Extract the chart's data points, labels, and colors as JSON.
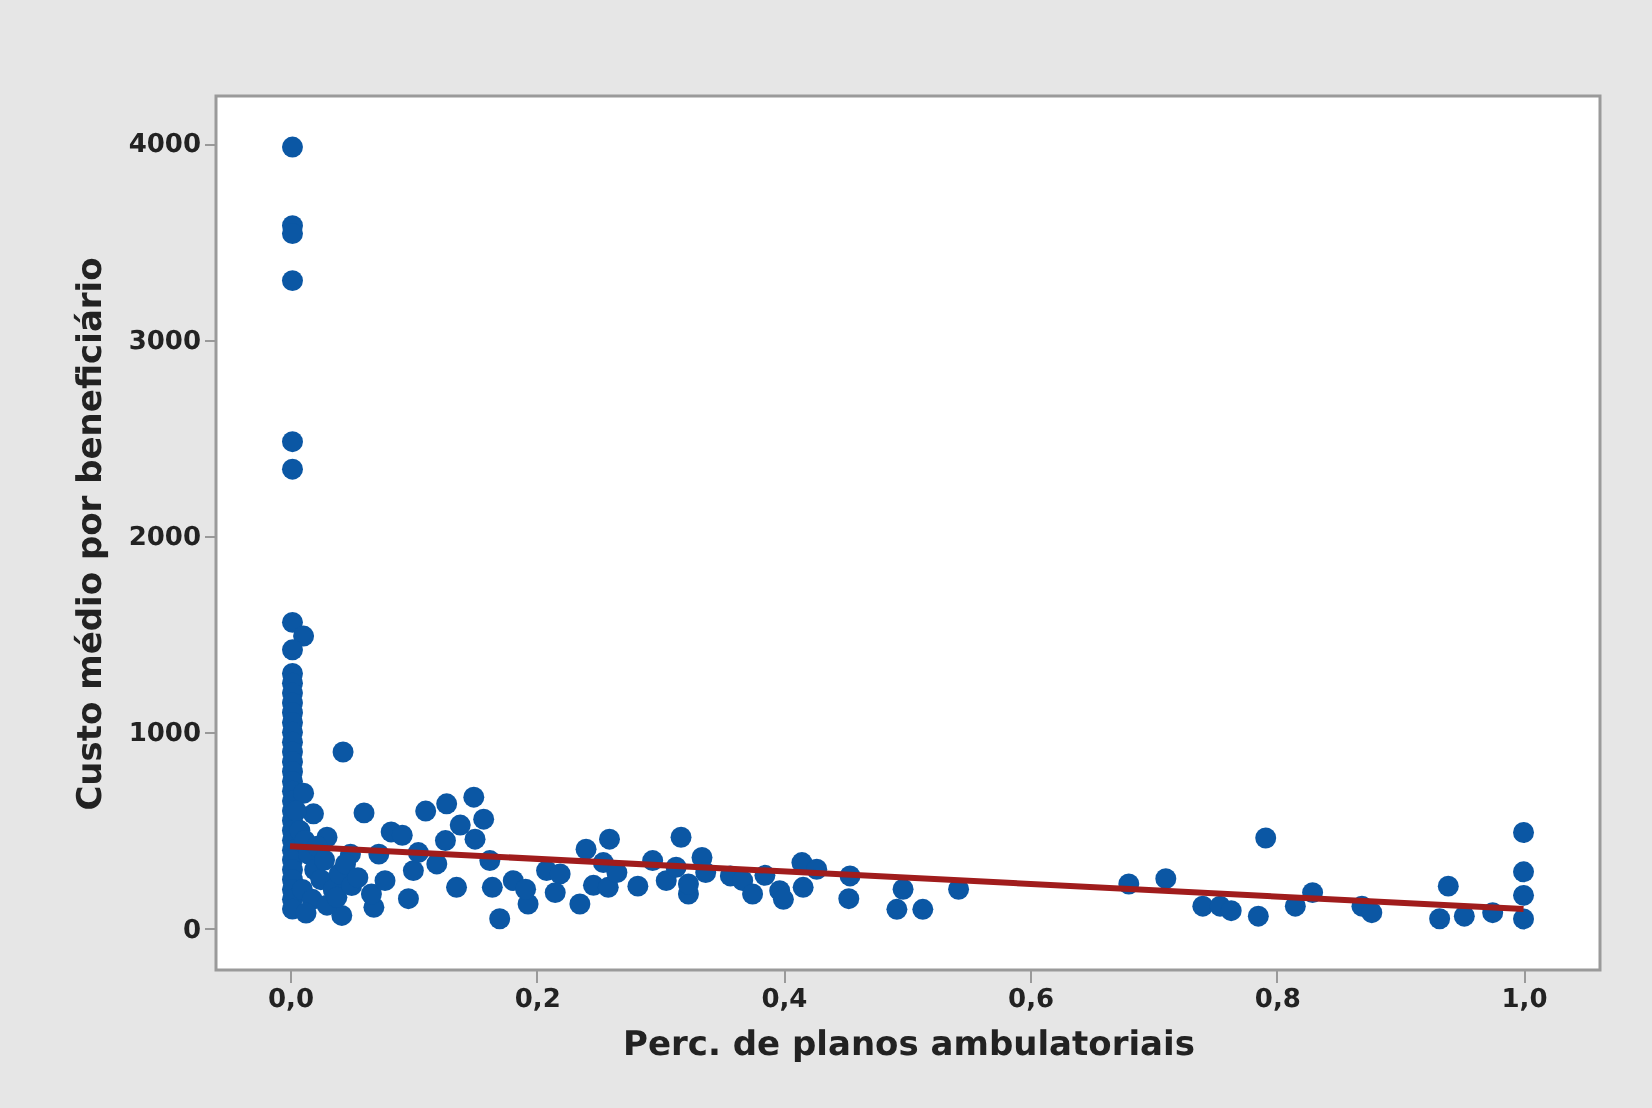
{
  "chart_data": {
    "type": "scatter",
    "xlabel": "Perc. de planos ambulatoriais",
    "ylabel": "Custo médio por beneficiário",
    "xlim": [
      -0.06,
      1.062
    ],
    "ylim": [
      -210,
      4240
    ],
    "xticks": [
      {
        "value": 0,
        "label": "0,0"
      },
      {
        "value": 0.2,
        "label": "0,2"
      },
      {
        "value": 0.4,
        "label": "0,4"
      },
      {
        "value": 0.6,
        "label": "0,6"
      },
      {
        "value": 0.8,
        "label": "0,8"
      },
      {
        "value": 1.0,
        "label": "1,0"
      }
    ],
    "yticks": [
      0,
      1000,
      2000,
      3000,
      4000
    ],
    "grid": false,
    "series": [
      {
        "color": "#0b57a4",
        "marker": "circle",
        "x": [
          0.002,
          0.002,
          0.002,
          0.002,
          0.002,
          0.002,
          0.002,
          0.011,
          0.002,
          0.002,
          0.002,
          0.002,
          0.002,
          0.002,
          0.002,
          0.002,
          0.002,
          0.002,
          0.002,
          0.002,
          0.002,
          0.002,
          0.002,
          0.002,
          0.002,
          0.002,
          0.002,
          0.002,
          0.002,
          0.002,
          0.002,
          0.002,
          0.002,
          0.002,
          0.011,
          0.019,
          0.043,
          0.03,
          0.049,
          0.042,
          0.06,
          0.072,
          0.068,
          0.066,
          0.077,
          0.082,
          0.091,
          0.096,
          0.1,
          0.104,
          0.11,
          0.119,
          0.127,
          0.126,
          0.135,
          0.138,
          0.149,
          0.157,
          0.15,
          0.162,
          0.164,
          0.17,
          0.181,
          0.193,
          0.191,
          0.208,
          0.219,
          0.215,
          0.235,
          0.24,
          0.246,
          0.258,
          0.254,
          0.259,
          0.265,
          0.282,
          0.294,
          0.305,
          0.313,
          0.317,
          0.323,
          0.323,
          0.334,
          0.337,
          0.357,
          0.367,
          0.375,
          0.385,
          0.397,
          0.4,
          0.415,
          0.416,
          0.427,
          0.454,
          0.453,
          0.497,
          0.492,
          0.513,
          0.542,
          0.68,
          0.71,
          0.74,
          0.754,
          0.763,
          0.785,
          0.791,
          0.815,
          0.829,
          0.869,
          0.877,
          0.932,
          0.939,
          0.952,
          0.975,
          1.0,
          1.0,
          1.0,
          1.0,
          0.005,
          0.008,
          0.012,
          0.015,
          0.02,
          0.025,
          0.01,
          0.018,
          0.03,
          0.035,
          0.04,
          0.045,
          0.022,
          0.028,
          0.038,
          0.05,
          0.055,
          0.013
        ],
        "values": [
          3980,
          3580,
          3540,
          3300,
          2480,
          2340,
          1560,
          1490,
          1420,
          1300,
          1250,
          1200,
          1150,
          1100,
          1050,
          1000,
          950,
          900,
          850,
          800,
          750,
          700,
          650,
          600,
          550,
          500,
          450,
          400,
          350,
          300,
          250,
          200,
          150,
          100,
          690,
          585,
          900,
          466,
          380,
          68,
          590,
          380,
          109,
          177,
          245,
          493,
          476,
          153,
          296,
          388,
          599,
          330,
          636,
          449,
          211,
          528,
          670,
          558,
          456,
          347,
          211,
          51,
          245,
          126,
          201,
          296,
          279,
          184,
          126,
          405,
          221,
          211,
          337,
          456,
          286,
          217,
          347,
          245,
          313,
          466,
          177,
          228,
          363,
          286,
          269,
          245,
          177,
          272,
          194,
          150,
          337,
          211,
          303,
          269,
          153,
          201,
          99,
          99,
          201,
          228,
          255,
          115,
          115,
          92,
          64,
          462,
          115,
          184,
          115,
          82,
          51,
          217,
          64,
          82,
          490,
          290,
          170,
          50,
          600,
          500,
          450,
          380,
          300,
          250,
          200,
          150,
          120,
          200,
          280,
          330,
          420,
          350,
          160,
          220,
          260,
          80
        ]
      },
      {
        "type": "line",
        "color": "#a01c1c",
        "x": [
          0,
          1
        ],
        "values": [
          420,
          100
        ]
      }
    ]
  }
}
